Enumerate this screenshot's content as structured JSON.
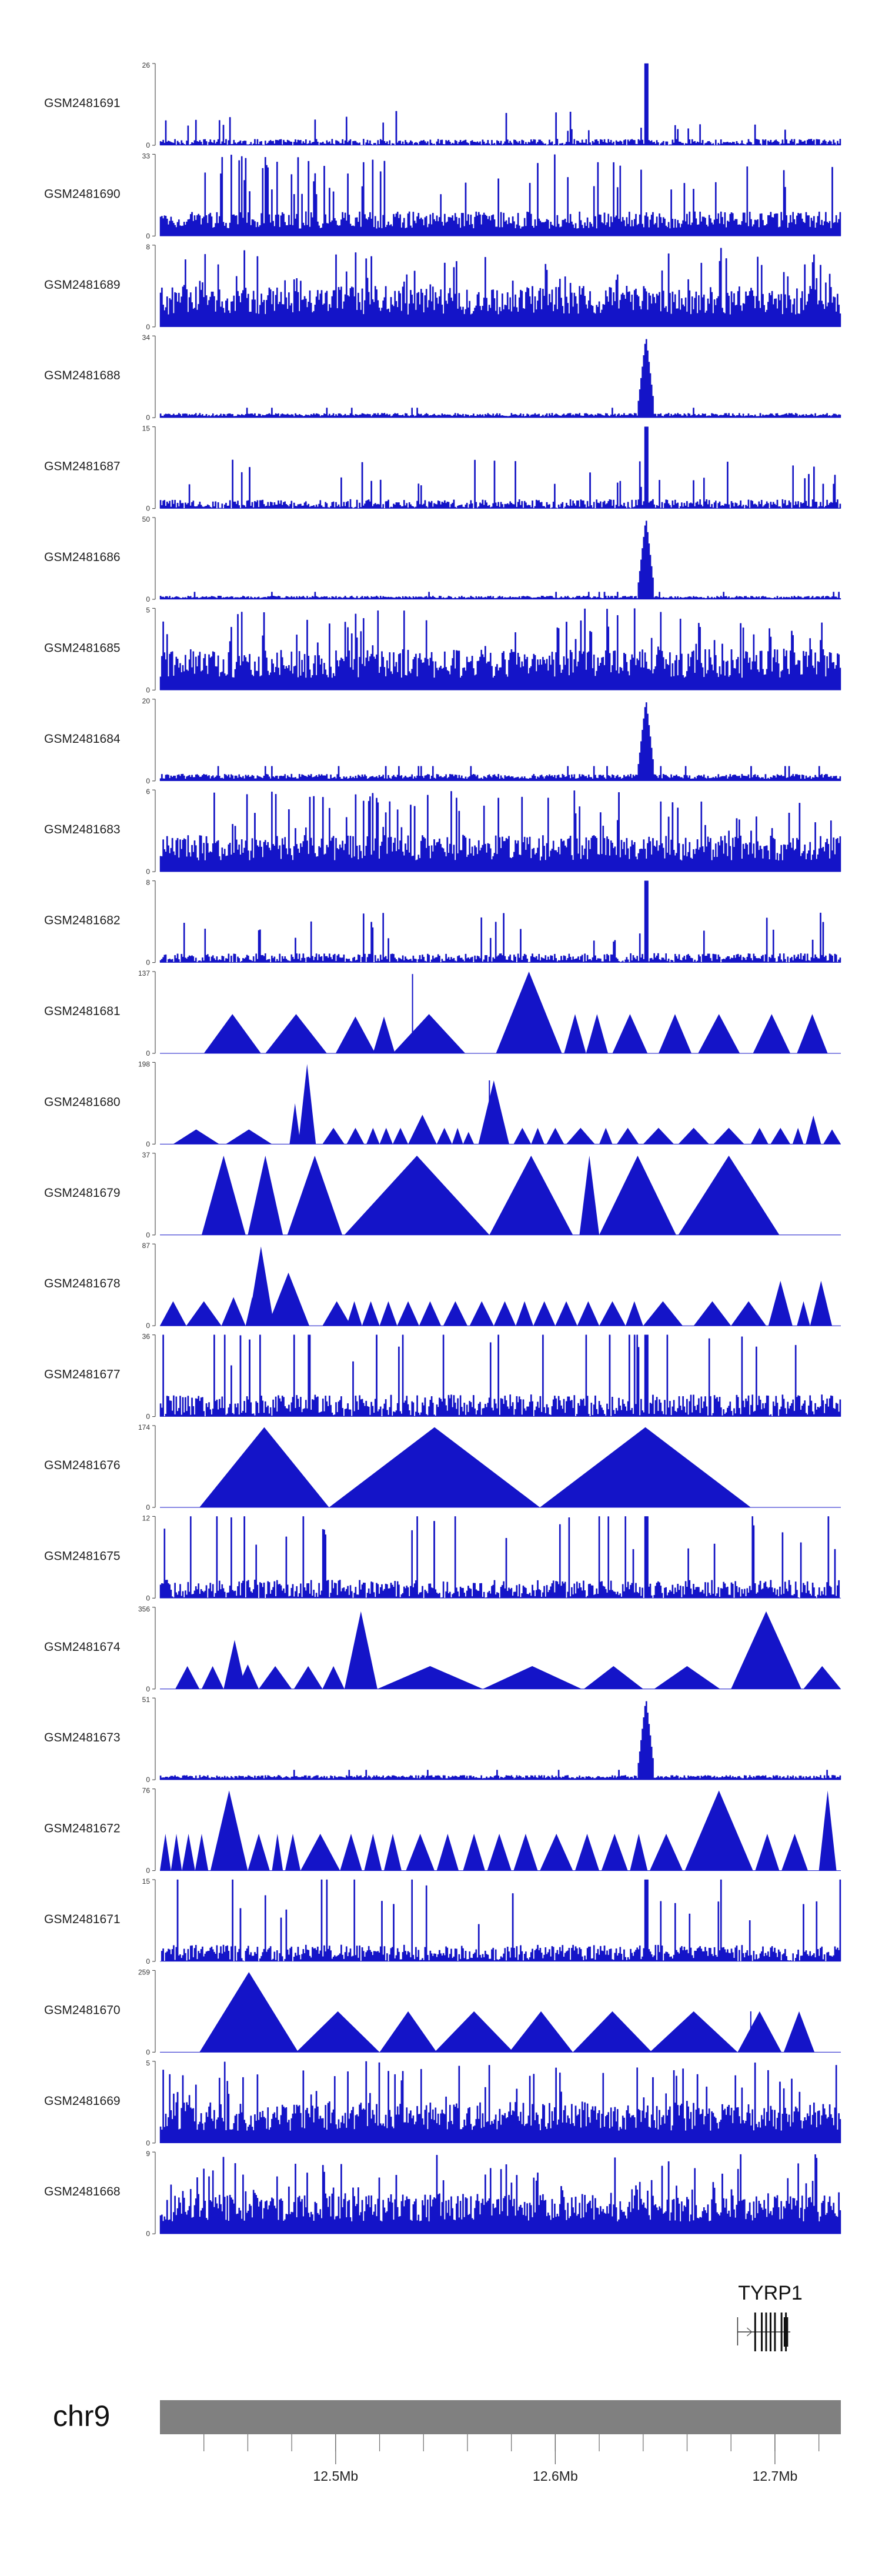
{
  "chart_data": {
    "type": "area",
    "title": "",
    "region": {
      "chromosome": "chr9",
      "start_mb": 12.42,
      "end_mb": 12.73
    },
    "tracks": [
      {
        "name": "GSM2481691",
        "ymin": 0,
        "ymax": 26,
        "pattern": "noise",
        "peak_rel": 0.17
      },
      {
        "name": "GSM2481690",
        "ymin": 0,
        "ymax": 33,
        "pattern": "dense",
        "peak_rel": 0.3
      },
      {
        "name": "GSM2481689",
        "ymin": 0,
        "ymax": 8,
        "pattern": "dense",
        "peak_rel": 0.5
      },
      {
        "name": "GSM2481688",
        "ymin": 0,
        "ymax": 34,
        "pattern": "peak",
        "peak_rel": 0.04
      },
      {
        "name": "GSM2481687",
        "ymin": 0,
        "ymax": 15,
        "pattern": "noise",
        "peak_rel": 0.25
      },
      {
        "name": "GSM2481686",
        "ymin": 0,
        "ymax": 50,
        "pattern": "peak",
        "peak_rel": 0.03
      },
      {
        "name": "GSM2481685",
        "ymin": 0,
        "ymax": 5,
        "pattern": "dense",
        "peak_rel": 0.5
      },
      {
        "name": "GSM2481684",
        "ymin": 0,
        "ymax": 20,
        "pattern": "peak",
        "peak_rel": 0.06
      },
      {
        "name": "GSM2481683",
        "ymin": 0,
        "ymax": 6,
        "pattern": "dense",
        "peak_rel": 0.45
      },
      {
        "name": "GSM2481682",
        "ymin": 0,
        "ymax": 8,
        "pattern": "noise",
        "peak_rel": 0.25
      },
      {
        "name": "GSM2481681",
        "ymin": 0,
        "ymax": 137,
        "pattern": "sparse",
        "tri": [
          [
            12.44,
            12.466,
            0.48
          ],
          [
            12.468,
            12.496,
            0.48
          ],
          [
            12.5,
            12.518,
            0.45
          ],
          [
            12.517,
            12.527,
            0.45
          ],
          [
            12.526,
            12.559,
            0.48
          ],
          [
            12.573,
            12.603,
            1.0
          ],
          [
            12.604,
            12.614,
            0.48
          ],
          [
            12.614,
            12.624,
            0.48
          ],
          [
            12.626,
            12.642,
            0.48
          ],
          [
            12.647,
            12.662,
            0.48
          ],
          [
            12.665,
            12.684,
            0.48
          ],
          [
            12.69,
            12.707,
            0.48
          ],
          [
            12.71,
            12.724,
            0.48
          ]
        ],
        "spikes": [
          [
            12.535,
            0.97
          ]
        ]
      },
      {
        "name": "GSM2481680",
        "ymin": 0,
        "ymax": 198,
        "pattern": "sparse",
        "tri": [
          [
            12.426,
            12.447,
            0.18
          ],
          [
            12.45,
            12.471,
            0.18
          ],
          [
            12.479,
            12.484,
            0.5
          ],
          [
            12.483,
            12.491,
            0.98
          ],
          [
            12.494,
            12.504,
            0.2
          ],
          [
            12.505,
            12.513,
            0.2
          ],
          [
            12.514,
            12.52,
            0.2
          ],
          [
            12.52,
            12.526,
            0.2
          ],
          [
            12.526,
            12.533,
            0.2
          ],
          [
            12.533,
            12.546,
            0.36
          ],
          [
            12.546,
            12.553,
            0.2
          ],
          [
            12.553,
            12.558,
            0.2
          ],
          [
            12.558,
            12.563,
            0.15
          ],
          [
            12.565,
            12.579,
            0.78
          ],
          [
            12.581,
            12.589,
            0.2
          ],
          [
            12.589,
            12.595,
            0.2
          ],
          [
            12.596,
            12.604,
            0.2
          ],
          [
            12.605,
            12.618,
            0.2
          ],
          [
            12.62,
            12.626,
            0.2
          ],
          [
            12.628,
            12.638,
            0.2
          ],
          [
            12.64,
            12.654,
            0.2
          ],
          [
            12.656,
            12.67,
            0.2
          ],
          [
            12.672,
            12.686,
            0.2
          ],
          [
            12.689,
            12.697,
            0.2
          ],
          [
            12.698,
            12.707,
            0.2
          ],
          [
            12.708,
            12.713,
            0.2
          ],
          [
            12.714,
            12.721,
            0.35
          ],
          [
            12.722,
            12.73,
            0.18
          ]
        ],
        "spikes": [
          [
            12.57,
            0.78
          ]
        ]
      },
      {
        "name": "GSM2481679",
        "ymin": 0,
        "ymax": 37,
        "pattern": "sparse",
        "tri": [
          [
            12.439,
            12.459,
            0.97
          ],
          [
            12.46,
            12.476,
            0.97
          ],
          [
            12.478,
            12.503,
            0.97
          ],
          [
            12.504,
            12.57,
            0.97
          ],
          [
            12.57,
            12.608,
            0.97
          ],
          [
            12.611,
            12.62,
            0.97
          ],
          [
            12.62,
            12.655,
            0.97
          ],
          [
            12.656,
            12.702,
            0.97
          ]
        ],
        "spikes": []
      },
      {
        "name": "GSM2481678",
        "ymin": 0,
        "ymax": 87,
        "pattern": "sparse",
        "tri": [
          [
            12.42,
            12.432,
            0.3
          ],
          [
            12.432,
            12.448,
            0.3
          ],
          [
            12.448,
            12.459,
            0.35
          ],
          [
            12.459,
            12.465,
            0.35
          ],
          [
            12.46,
            12.472,
            0.97
          ],
          [
            12.469,
            12.488,
            0.65
          ],
          [
            12.494,
            12.507,
            0.3
          ],
          [
            12.505,
            12.512,
            0.3
          ],
          [
            12.512,
            12.52,
            0.3
          ],
          [
            12.52,
            12.528,
            0.3
          ],
          [
            12.528,
            12.538,
            0.3
          ],
          [
            12.538,
            12.548,
            0.3
          ],
          [
            12.549,
            12.56,
            0.3
          ],
          [
            12.561,
            12.572,
            0.3
          ],
          [
            12.572,
            12.582,
            0.3
          ],
          [
            12.582,
            12.59,
            0.3
          ],
          [
            12.59,
            12.6,
            0.3
          ],
          [
            12.6,
            12.61,
            0.3
          ],
          [
            12.61,
            12.62,
            0.3
          ],
          [
            12.62,
            12.632,
            0.3
          ],
          [
            12.632,
            12.64,
            0.3
          ],
          [
            12.64,
            12.658,
            0.3
          ],
          [
            12.663,
            12.68,
            0.3
          ],
          [
            12.68,
            12.696,
            0.3
          ],
          [
            12.697,
            12.708,
            0.55
          ],
          [
            12.71,
            12.716,
            0.3
          ],
          [
            12.716,
            12.726,
            0.55
          ]
        ],
        "spikes": []
      },
      {
        "name": "GSM2481677",
        "ymin": 0,
        "ymax": 36,
        "pattern": "noise",
        "peak_rel": 0.6
      },
      {
        "name": "GSM2481676",
        "ymin": 0,
        "ymax": 174,
        "pattern": "sparse",
        "tri": [
          [
            12.438,
            12.497,
            0.98
          ],
          [
            12.497,
            12.593,
            0.98
          ],
          [
            12.593,
            12.689,
            0.98
          ]
        ],
        "spikes": []
      },
      {
        "name": "GSM2481675",
        "ymin": 0,
        "ymax": 12,
        "pattern": "noise",
        "peak_rel": 0.5
      },
      {
        "name": "GSM2481674",
        "ymin": 0,
        "ymax": 356,
        "pattern": "sparse",
        "tri": [
          [
            12.427,
            12.438,
            0.28
          ],
          [
            12.439,
            12.449,
            0.28
          ],
          [
            12.449,
            12.459,
            0.6
          ],
          [
            12.455,
            12.465,
            0.3
          ],
          [
            12.465,
            12.48,
            0.28
          ],
          [
            12.481,
            12.494,
            0.28
          ],
          [
            12.494,
            12.504,
            0.28
          ],
          [
            12.504,
            12.519,
            0.95
          ],
          [
            12.519,
            12.567,
            0.28
          ],
          [
            12.567,
            12.612,
            0.28
          ],
          [
            12.613,
            12.64,
            0.28
          ],
          [
            12.645,
            12.675,
            0.28
          ],
          [
            12.68,
            12.712,
            0.95
          ],
          [
            12.713,
            12.73,
            0.28
          ]
        ],
        "spikes": []
      },
      {
        "name": "GSM2481673",
        "ymin": 0,
        "ymax": 51,
        "pattern": "peak",
        "peak_rel": 0.04
      },
      {
        "name": "GSM2481672",
        "ymin": 0,
        "ymax": 76,
        "pattern": "sparse",
        "tri": [
          [
            12.42,
            12.425,
            0.45
          ],
          [
            12.425,
            12.43,
            0.45
          ],
          [
            12.43,
            12.436,
            0.45
          ],
          [
            12.436,
            12.442,
            0.45
          ],
          [
            12.443,
            12.46,
            0.98
          ],
          [
            12.46,
            12.47,
            0.45
          ],
          [
            12.471,
            12.476,
            0.45
          ],
          [
            12.477,
            12.484,
            0.45
          ],
          [
            12.484,
            12.502,
            0.45
          ],
          [
            12.502,
            12.512,
            0.45
          ],
          [
            12.513,
            12.521,
            0.45
          ],
          [
            12.522,
            12.53,
            0.45
          ],
          [
            12.532,
            12.545,
            0.45
          ],
          [
            12.546,
            12.556,
            0.45
          ],
          [
            12.558,
            12.568,
            0.45
          ],
          [
            12.569,
            12.58,
            0.45
          ],
          [
            12.581,
            12.592,
            0.45
          ],
          [
            12.593,
            12.608,
            0.45
          ],
          [
            12.609,
            12.62,
            0.45
          ],
          [
            12.621,
            12.633,
            0.45
          ],
          [
            12.634,
            12.642,
            0.45
          ],
          [
            12.643,
            12.658,
            0.45
          ],
          [
            12.659,
            12.69,
            0.98
          ],
          [
            12.691,
            12.702,
            0.45
          ],
          [
            12.703,
            12.715,
            0.45
          ],
          [
            12.72,
            12.728,
            0.98
          ]
        ],
        "spikes": []
      },
      {
        "name": "GSM2481671",
        "ymin": 0,
        "ymax": 15,
        "pattern": "noise",
        "peak_rel": 0.45
      },
      {
        "name": "GSM2481670",
        "ymin": 0,
        "ymax": 259,
        "pattern": "sparse",
        "tri": [
          [
            12.438,
            12.483,
            0.98
          ],
          [
            12.482,
            12.52,
            0.5
          ],
          [
            12.52,
            12.546,
            0.5
          ],
          [
            12.545,
            12.581,
            0.5
          ],
          [
            12.579,
            12.608,
            0.5
          ],
          [
            12.608,
            12.644,
            0.5
          ],
          [
            12.643,
            12.683,
            0.5
          ],
          [
            12.683,
            12.703,
            0.5
          ],
          [
            12.704,
            12.718,
            0.5
          ]
        ],
        "spikes": [
          [
            12.689,
            0.5
          ]
        ]
      },
      {
        "name": "GSM2481669",
        "ymin": 0,
        "ymax": 5,
        "pattern": "dense",
        "peak_rel": 0.5
      },
      {
        "name": "GSM2481668",
        "ymin": 0,
        "ymax": 9,
        "pattern": "dense",
        "peak_rel": 0.5
      }
    ],
    "peak_position_mb": 12.641,
    "gene": {
      "name": "TYRP1",
      "start_mb": 12.683,
      "end_mb": 12.707,
      "exons_mb": [
        12.691,
        12.694,
        12.696,
        12.698,
        12.7,
        12.703,
        12.705
      ],
      "thick_start_mb": 12.704,
      "thick_end_mb": 12.706
    },
    "xaxis": {
      "ticks_mb": [
        12.44,
        12.46,
        12.48,
        12.5,
        12.52,
        12.54,
        12.56,
        12.58,
        12.6,
        12.62,
        12.64,
        12.66,
        12.68,
        12.7,
        12.72
      ],
      "labels": [
        {
          "at_mb": 12.5,
          "text": "12.5Mb"
        },
        {
          "at_mb": 12.6,
          "text": "12.6Mb"
        },
        {
          "at_mb": 12.7,
          "text": "12.7Mb"
        }
      ]
    },
    "colors": {
      "fill": "#1414c8",
      "line": "#0000b4",
      "ideogram": "#808080",
      "axis": "#555555"
    }
  }
}
